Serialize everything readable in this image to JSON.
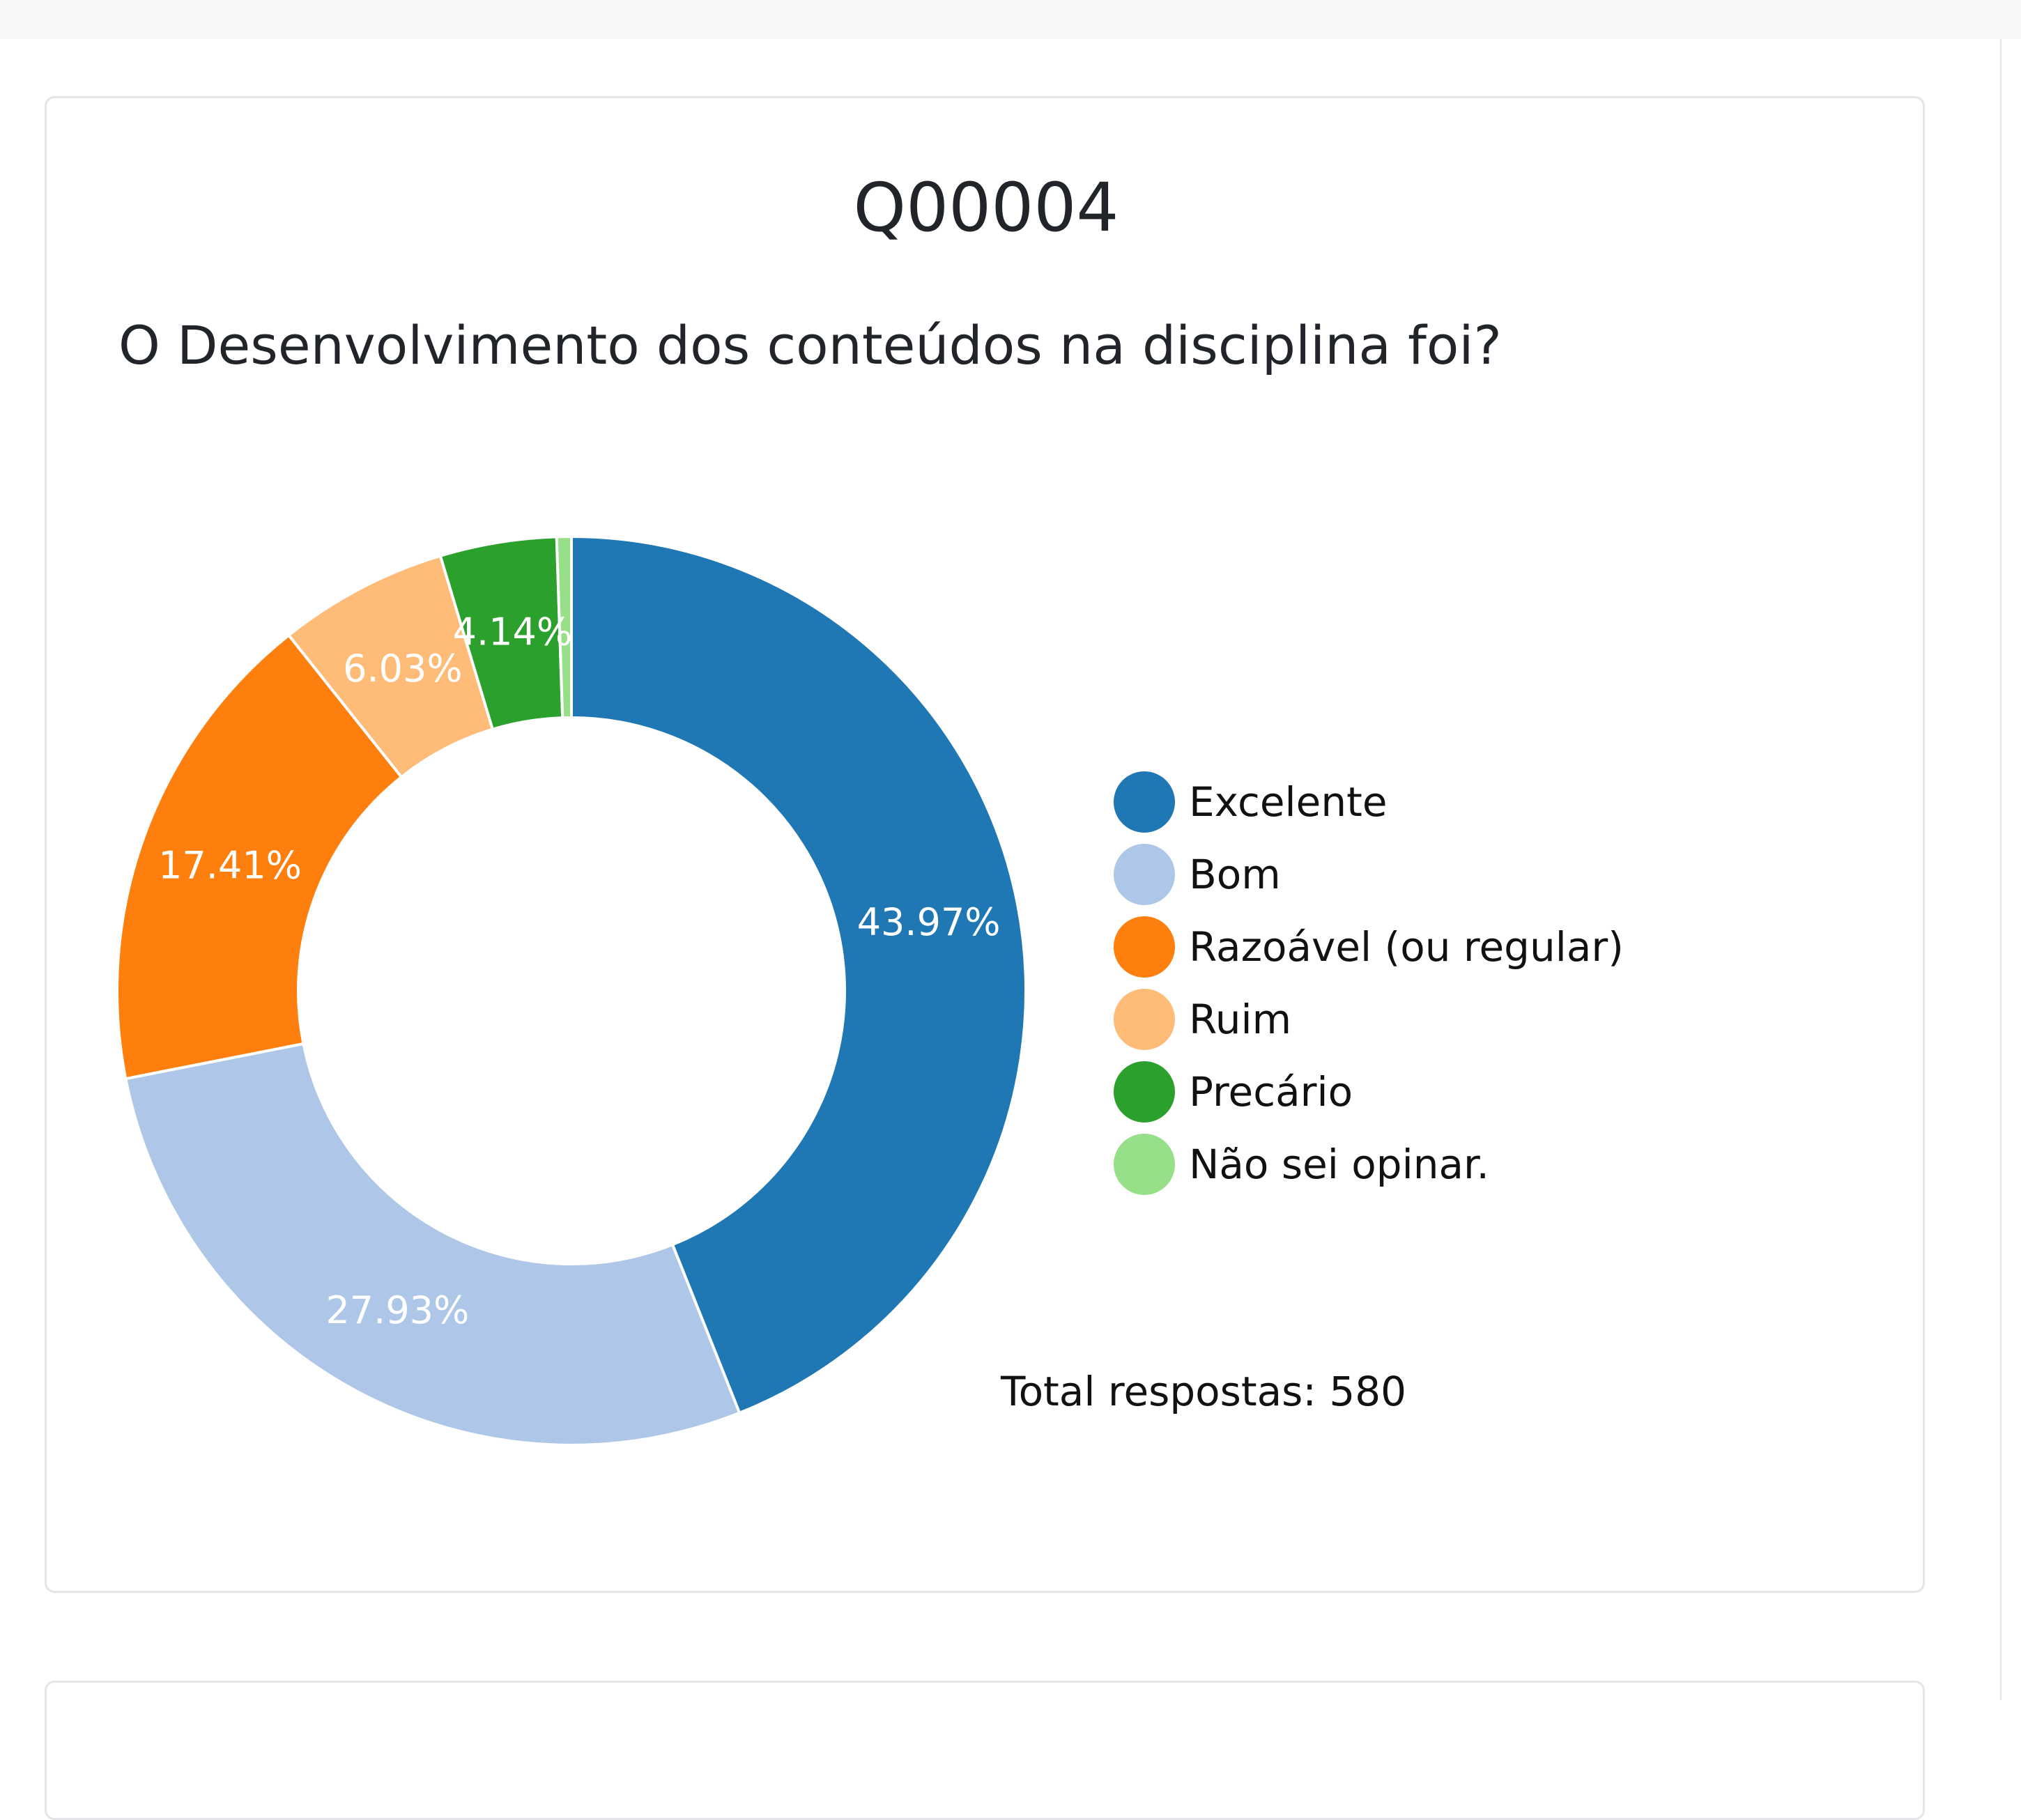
{
  "question_code": "Q00004",
  "question_text": "O Desenvolvimento dos conteúdos na disciplina foi?",
  "chart_data": {
    "type": "pie",
    "style": "donut",
    "categories": [
      "Excelente",
      "Bom",
      "Razoável (ou regular)",
      "Ruim",
      "Precário",
      "Não sei opinar."
    ],
    "values": [
      43.97,
      27.93,
      17.41,
      6.03,
      4.14,
      0.52
    ],
    "value_labels": [
      "43.97%",
      "27.93%",
      "17.41%",
      "6.03%",
      "4.14%",
      ""
    ],
    "colors": [
      "#1f77b4",
      "#aec7e8",
      "#ff7f0e",
      "#ffbb78",
      "#2ca02c",
      "#98df8a"
    ],
    "legend_position": "right",
    "total_label": "Total respostas: 580"
  }
}
